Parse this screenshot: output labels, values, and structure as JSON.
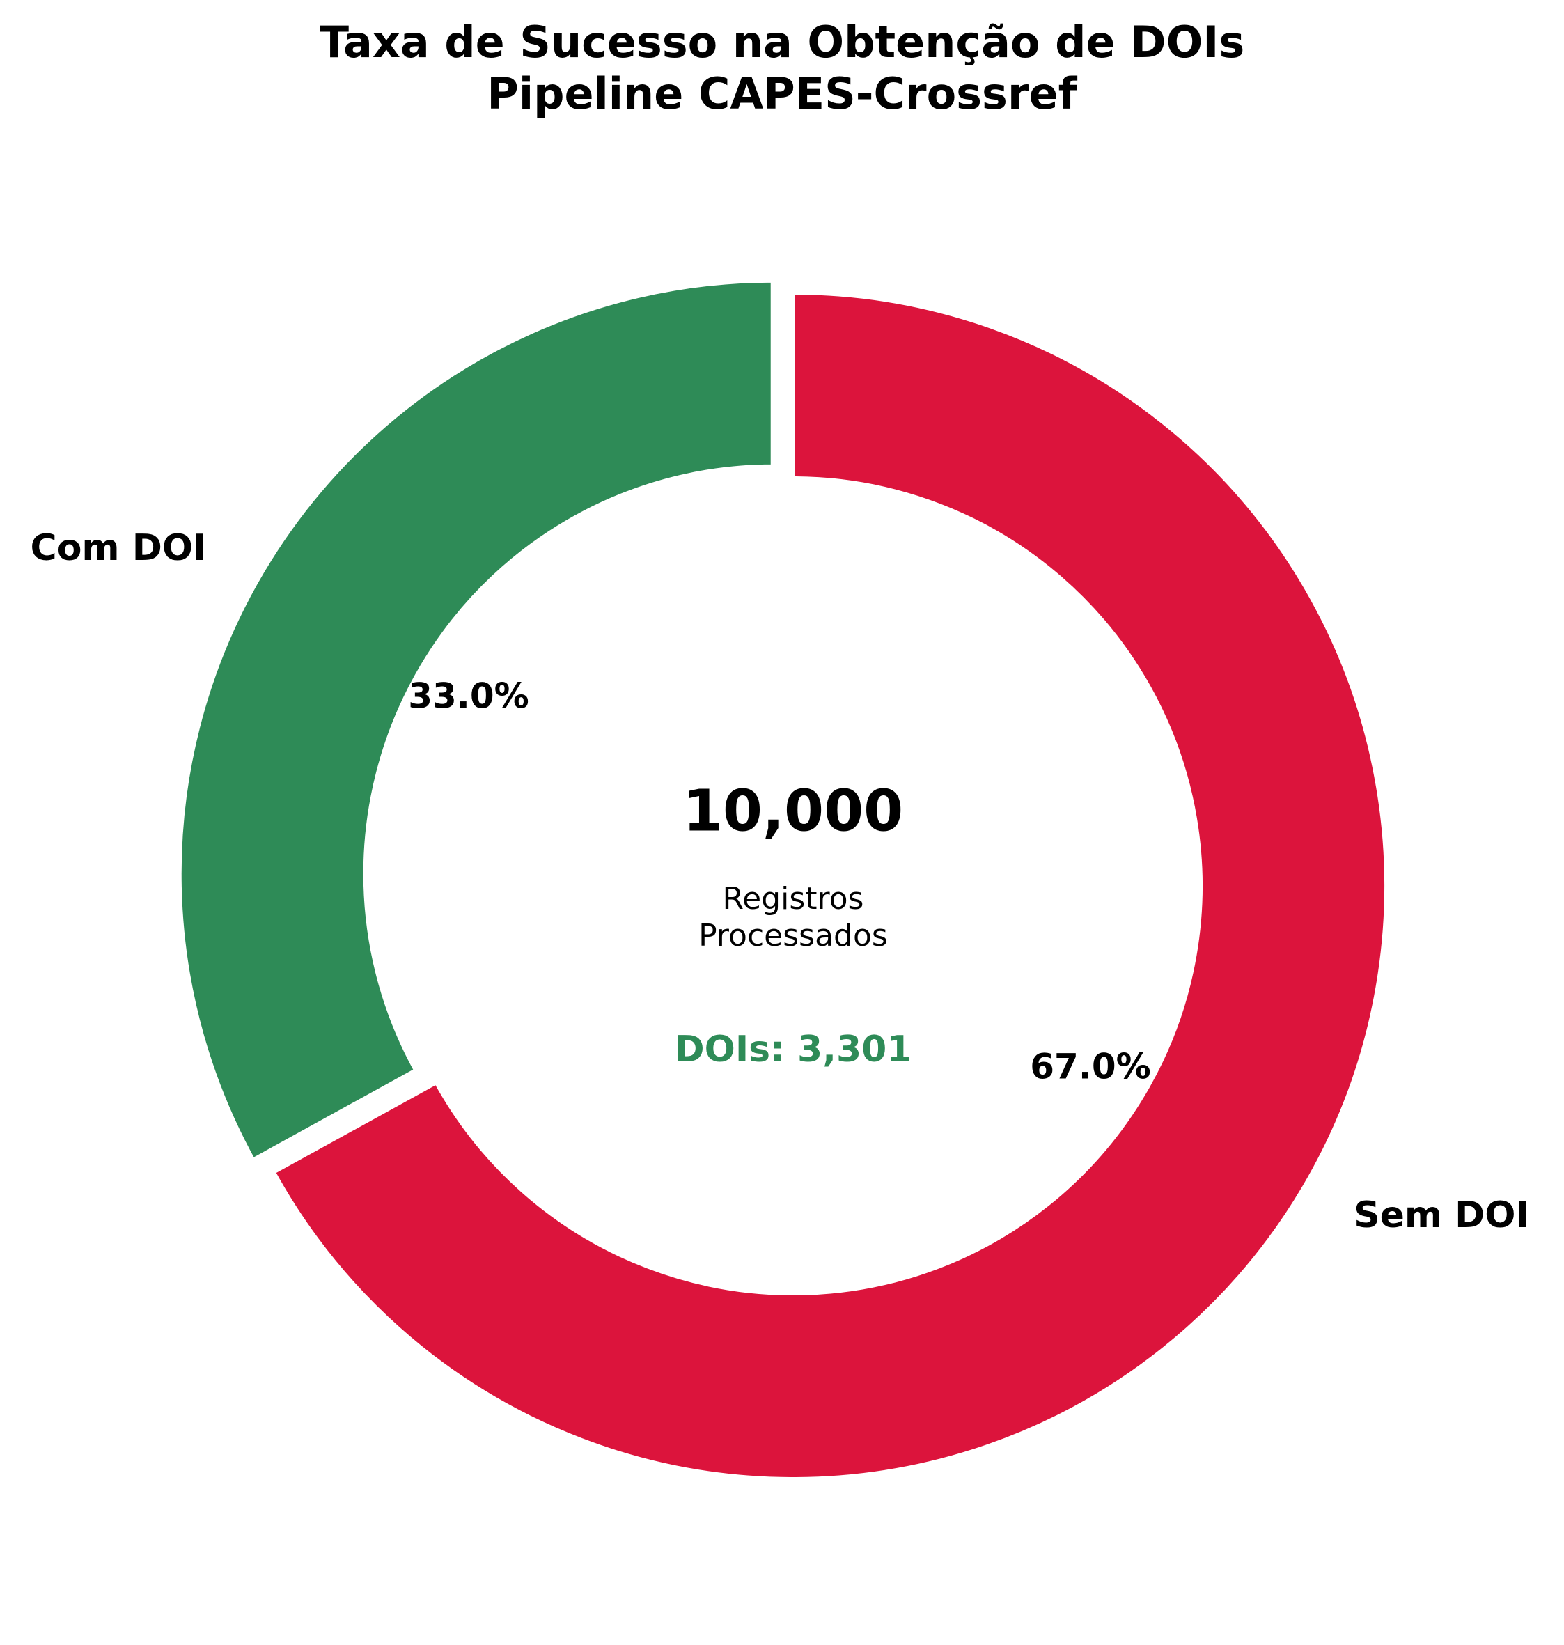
{
  "chart_data": {
    "type": "pie",
    "subtype": "donut",
    "title": "Taxa de Sucesso na Obtenção de DOIs",
    "subtitle": "Pipeline CAPES-Crossref",
    "slices": [
      {
        "label": "Com DOI",
        "value": 3301,
        "percent_label": "33.0%",
        "color": "#2e8b57",
        "exploded": true
      },
      {
        "label": "Sem DOI",
        "value": 6699,
        "percent_label": "67.0%",
        "color": "#dc143c",
        "exploded": false
      }
    ],
    "center": {
      "total": "10,000",
      "caption_line1": "Registros",
      "caption_line2": "Processados",
      "dois_text": "DOIs: 3,301",
      "dois_color": "#2e8b57"
    },
    "start_angle_deg": 90,
    "direction": "counterclockwise",
    "legend": "none"
  }
}
